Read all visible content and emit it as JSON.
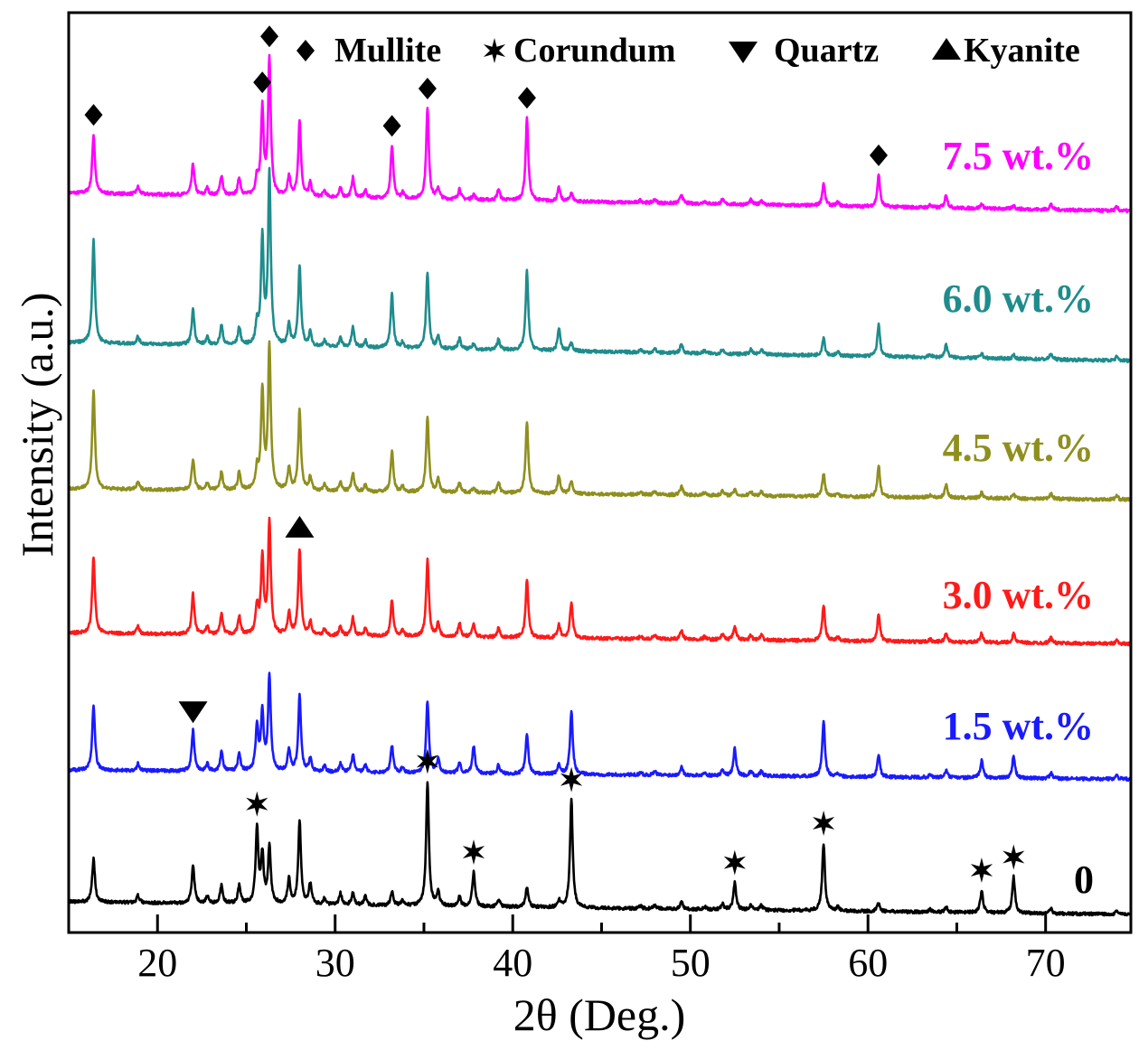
{
  "chart_data": {
    "type": "line",
    "title": "",
    "xlabel": "2θ (Deg.)",
    "ylabel": "Intensity (a.u.)",
    "xlim": [
      15,
      74.8
    ],
    "ylim": [
      0,
      102
    ],
    "xticks": [
      20,
      30,
      40,
      50,
      60,
      70
    ],
    "xtick_labels": [
      "20",
      "30",
      "40",
      "50",
      "60",
      "70"
    ],
    "minor_xticks": [
      25,
      35,
      45,
      55,
      65
    ],
    "grid": false,
    "legend_position": "top-right",
    "legend": [
      {
        "symbol": "diamond",
        "label": "Mullite"
      },
      {
        "symbol": "star",
        "label": "Corundum"
      },
      {
        "symbol": "triangle-down",
        "label": "Quartz"
      },
      {
        "symbol": "triangle-up",
        "label": "Kyanite"
      }
    ],
    "series": [
      {
        "name": "7.5 wt.%",
        "color": "#ff00ff",
        "offset": 82,
        "drift": 2.0,
        "peaks": [
          [
            16.4,
            6.5
          ],
          [
            18.9,
            0.8
          ],
          [
            22.0,
            3.5
          ],
          [
            22.8,
            0.8
          ],
          [
            23.6,
            2.2
          ],
          [
            24.6,
            2.0
          ],
          [
            25.6,
            2.0
          ],
          [
            25.9,
            9.5
          ],
          [
            26.3,
            15
          ],
          [
            27.4,
            2.2
          ],
          [
            28.0,
            8.5
          ],
          [
            28.6,
            1.5
          ],
          [
            29.4,
            0.7
          ],
          [
            30.3,
            1.0
          ],
          [
            31.0,
            2.2
          ],
          [
            31.7,
            0.8
          ],
          [
            33.2,
            5.8
          ],
          [
            33.8,
            0.6
          ],
          [
            35.2,
            10
          ],
          [
            35.8,
            1.2
          ],
          [
            37.0,
            1.2
          ],
          [
            37.8,
            0.6
          ],
          [
            39.2,
            1.2
          ],
          [
            40.8,
            9.2
          ],
          [
            42.6,
            1.5
          ],
          [
            43.3,
            1.0
          ],
          [
            47.2,
            0.3
          ],
          [
            48.0,
            0.4
          ],
          [
            49.5,
            1.0
          ],
          [
            50.8,
            0.3
          ],
          [
            51.8,
            0.5
          ],
          [
            53.4,
            0.5
          ],
          [
            54.0,
            0.5
          ],
          [
            57.5,
            2.5
          ],
          [
            58.3,
            0.4
          ],
          [
            60.6,
            3.5
          ],
          [
            63.5,
            0.3
          ],
          [
            64.4,
            1.5
          ],
          [
            66.4,
            0.5
          ],
          [
            68.2,
            0.4
          ],
          [
            70.3,
            0.6
          ],
          [
            74.0,
            0.4
          ]
        ]
      },
      {
        "name": "6.0 wt.%",
        "color": "#1f8c8c",
        "offset": 65.4,
        "drift": 2.0,
        "peaks": [
          [
            16.4,
            11.5
          ],
          [
            18.9,
            0.8
          ],
          [
            22.0,
            4.0
          ],
          [
            22.8,
            0.8
          ],
          [
            23.6,
            2.2
          ],
          [
            24.6,
            2.0
          ],
          [
            25.6,
            2.2
          ],
          [
            25.9,
            11.8
          ],
          [
            26.3,
            19
          ],
          [
            27.4,
            2.5
          ],
          [
            28.0,
            9.0
          ],
          [
            28.6,
            1.5
          ],
          [
            29.4,
            0.7
          ],
          [
            30.3,
            1.0
          ],
          [
            31.0,
            2.2
          ],
          [
            31.7,
            0.8
          ],
          [
            33.2,
            6.0
          ],
          [
            33.8,
            0.6
          ],
          [
            35.2,
            8.5
          ],
          [
            35.8,
            1.4
          ],
          [
            37.0,
            1.2
          ],
          [
            37.8,
            0.6
          ],
          [
            39.2,
            1.2
          ],
          [
            40.8,
            8.8
          ],
          [
            42.6,
            2.5
          ],
          [
            43.3,
            1.0
          ],
          [
            47.2,
            0.3
          ],
          [
            48.0,
            0.4
          ],
          [
            49.5,
            1.0
          ],
          [
            50.8,
            0.3
          ],
          [
            51.8,
            0.5
          ],
          [
            53.4,
            0.5
          ],
          [
            54.0,
            0.5
          ],
          [
            57.5,
            2.0
          ],
          [
            58.3,
            0.4
          ],
          [
            60.6,
            3.5
          ],
          [
            63.5,
            0.3
          ],
          [
            64.4,
            1.5
          ],
          [
            66.4,
            0.5
          ],
          [
            68.2,
            0.4
          ],
          [
            70.3,
            0.6
          ],
          [
            74.0,
            0.4
          ]
        ]
      },
      {
        "name": "4.5 wt.%",
        "color": "#8f8f1f",
        "offset": 49.2,
        "drift": 1.2,
        "peaks": [
          [
            16.4,
            11
          ],
          [
            18.9,
            0.8
          ],
          [
            22.0,
            3.5
          ],
          [
            22.8,
            0.8
          ],
          [
            23.6,
            2.0
          ],
          [
            24.6,
            2.0
          ],
          [
            25.6,
            2.2
          ],
          [
            25.9,
            11
          ],
          [
            26.3,
            16
          ],
          [
            27.4,
            2.5
          ],
          [
            28.0,
            9.0
          ],
          [
            28.6,
            1.5
          ],
          [
            29.4,
            0.7
          ],
          [
            30.3,
            1.0
          ],
          [
            31.0,
            2.0
          ],
          [
            31.7,
            0.8
          ],
          [
            33.2,
            4.5
          ],
          [
            33.8,
            0.6
          ],
          [
            35.2,
            8.5
          ],
          [
            35.8,
            1.4
          ],
          [
            37.0,
            1.2
          ],
          [
            37.8,
            0.6
          ],
          [
            39.2,
            1.2
          ],
          [
            40.8,
            8.0
          ],
          [
            42.6,
            2.0
          ],
          [
            43.3,
            1.5
          ],
          [
            47.2,
            0.3
          ],
          [
            48.0,
            0.4
          ],
          [
            49.5,
            1.0
          ],
          [
            50.8,
            0.3
          ],
          [
            51.8,
            0.5
          ],
          [
            52.5,
            0.6
          ],
          [
            53.4,
            0.5
          ],
          [
            54.0,
            0.5
          ],
          [
            57.5,
            2.5
          ],
          [
            58.3,
            0.4
          ],
          [
            60.6,
            3.5
          ],
          [
            63.5,
            0.3
          ],
          [
            64.4,
            1.5
          ],
          [
            66.4,
            0.6
          ],
          [
            68.2,
            0.4
          ],
          [
            70.3,
            0.6
          ],
          [
            74.0,
            0.4
          ]
        ]
      },
      {
        "name": "3.0 wt.%",
        "color": "#ff1a1a",
        "offset": 33.2,
        "drift": 1.2,
        "peaks": [
          [
            16.4,
            8.5
          ],
          [
            18.9,
            0.8
          ],
          [
            22.0,
            4.5
          ],
          [
            22.8,
            0.8
          ],
          [
            23.6,
            2.2
          ],
          [
            24.6,
            2.0
          ],
          [
            25.6,
            3.0
          ],
          [
            25.9,
            8.5
          ],
          [
            26.3,
            12.5
          ],
          [
            27.4,
            2.5
          ],
          [
            28.0,
            9.5
          ],
          [
            28.6,
            1.5
          ],
          [
            29.4,
            0.7
          ],
          [
            30.3,
            1.0
          ],
          [
            31.0,
            2.0
          ],
          [
            31.7,
            0.8
          ],
          [
            33.2,
            4.0
          ],
          [
            33.8,
            0.6
          ],
          [
            35.2,
            8.5
          ],
          [
            35.8,
            1.5
          ],
          [
            37.0,
            1.5
          ],
          [
            37.8,
            1.5
          ],
          [
            39.2,
            1.0
          ],
          [
            40.8,
            6.5
          ],
          [
            42.6,
            1.5
          ],
          [
            43.3,
            4.0
          ],
          [
            47.2,
            0.3
          ],
          [
            48.0,
            0.4
          ],
          [
            49.5,
            1.0
          ],
          [
            50.8,
            0.3
          ],
          [
            51.8,
            0.6
          ],
          [
            52.5,
            1.5
          ],
          [
            53.4,
            0.5
          ],
          [
            54.0,
            0.5
          ],
          [
            57.5,
            4.0
          ],
          [
            58.3,
            0.4
          ],
          [
            60.6,
            3.0
          ],
          [
            63.5,
            0.3
          ],
          [
            64.4,
            1.0
          ],
          [
            66.4,
            1.0
          ],
          [
            68.2,
            1.0
          ],
          [
            70.3,
            0.6
          ],
          [
            74.0,
            0.4
          ]
        ]
      },
      {
        "name": "1.5 wt.%",
        "color": "#1a1aff",
        "offset": 18,
        "drift": 1.0,
        "peaks": [
          [
            16.4,
            7.2
          ],
          [
            18.9,
            0.8
          ],
          [
            22.0,
            4.5
          ],
          [
            22.8,
            0.8
          ],
          [
            23.6,
            2.2
          ],
          [
            24.6,
            2.0
          ],
          [
            25.6,
            5.0
          ],
          [
            25.9,
            6.5
          ],
          [
            26.3,
            10.5
          ],
          [
            27.4,
            2.5
          ],
          [
            28.0,
            8.5
          ],
          [
            28.6,
            1.5
          ],
          [
            29.4,
            0.7
          ],
          [
            30.3,
            1.0
          ],
          [
            31.0,
            2.0
          ],
          [
            31.7,
            0.8
          ],
          [
            33.2,
            3.0
          ],
          [
            33.8,
            0.6
          ],
          [
            35.2,
            8.0
          ],
          [
            35.8,
            1.5
          ],
          [
            37.0,
            1.2
          ],
          [
            37.8,
            3.0
          ],
          [
            39.2,
            1.0
          ],
          [
            40.8,
            4.5
          ],
          [
            42.6,
            1.0
          ],
          [
            43.3,
            7.0
          ],
          [
            47.2,
            0.3
          ],
          [
            48.0,
            0.4
          ],
          [
            49.5,
            1.0
          ],
          [
            50.8,
            0.3
          ],
          [
            51.8,
            0.6
          ],
          [
            52.5,
            3.0
          ],
          [
            53.4,
            0.5
          ],
          [
            54.0,
            0.5
          ],
          [
            57.5,
            6.0
          ],
          [
            58.3,
            0.4
          ],
          [
            60.6,
            2.5
          ],
          [
            63.5,
            0.3
          ],
          [
            64.4,
            0.8
          ],
          [
            66.4,
            2.0
          ],
          [
            68.2,
            2.5
          ],
          [
            70.3,
            0.6
          ],
          [
            74.0,
            0.4
          ]
        ]
      },
      {
        "name": "0",
        "color": "#000000",
        "offset": 3.4,
        "drift": 1.4,
        "peaks": [
          [
            16.4,
            4.8
          ],
          [
            18.9,
            0.8
          ],
          [
            22.0,
            4.3
          ],
          [
            22.8,
            0.8
          ],
          [
            23.6,
            2.0
          ],
          [
            24.6,
            2.0
          ],
          [
            25.6,
            8.3
          ],
          [
            25.9,
            5.3
          ],
          [
            26.3,
            6.3
          ],
          [
            27.4,
            2.8
          ],
          [
            28.0,
            9.3
          ],
          [
            28.6,
            2.3
          ],
          [
            29.4,
            0.7
          ],
          [
            30.3,
            1.3
          ],
          [
            31.0,
            1.3
          ],
          [
            31.7,
            1.0
          ],
          [
            33.2,
            1.5
          ],
          [
            33.8,
            0.6
          ],
          [
            35.2,
            13.8
          ],
          [
            35.8,
            1.5
          ],
          [
            37.0,
            1.0
          ],
          [
            37.8,
            3.8
          ],
          [
            39.2,
            0.8
          ],
          [
            40.8,
            2.3
          ],
          [
            42.6,
            0.8
          ],
          [
            43.3,
            12
          ],
          [
            47.2,
            0.3
          ],
          [
            48.0,
            0.4
          ],
          [
            49.5,
            0.8
          ],
          [
            50.8,
            0.3
          ],
          [
            51.8,
            0.6
          ],
          [
            52.5,
            3.0
          ],
          [
            53.4,
            0.5
          ],
          [
            54.0,
            0.5
          ],
          [
            57.5,
            7.5
          ],
          [
            58.3,
            0.4
          ],
          [
            60.6,
            1.0
          ],
          [
            63.5,
            0.3
          ],
          [
            64.4,
            0.6
          ],
          [
            66.4,
            2.5
          ],
          [
            68.2,
            4.0
          ],
          [
            70.3,
            0.5
          ],
          [
            74.0,
            0.4
          ]
        ]
      }
    ],
    "annotations": [
      {
        "series": "7.5 wt.%",
        "symbol": "diamond",
        "x": [
          16.4,
          25.9,
          26.3,
          33.2,
          35.2,
          40.8,
          60.6
        ]
      },
      {
        "series": "3.0 wt.%",
        "symbol": "triangle-up",
        "x": [
          28.0
        ]
      },
      {
        "series": "1.5 wt.%",
        "symbol": "triangle-down",
        "x": [
          22.0
        ]
      },
      {
        "series": "0",
        "symbol": "star",
        "x": [
          25.6,
          35.2,
          37.8,
          43.3,
          52.5,
          57.5,
          66.4,
          68.2
        ]
      }
    ]
  }
}
